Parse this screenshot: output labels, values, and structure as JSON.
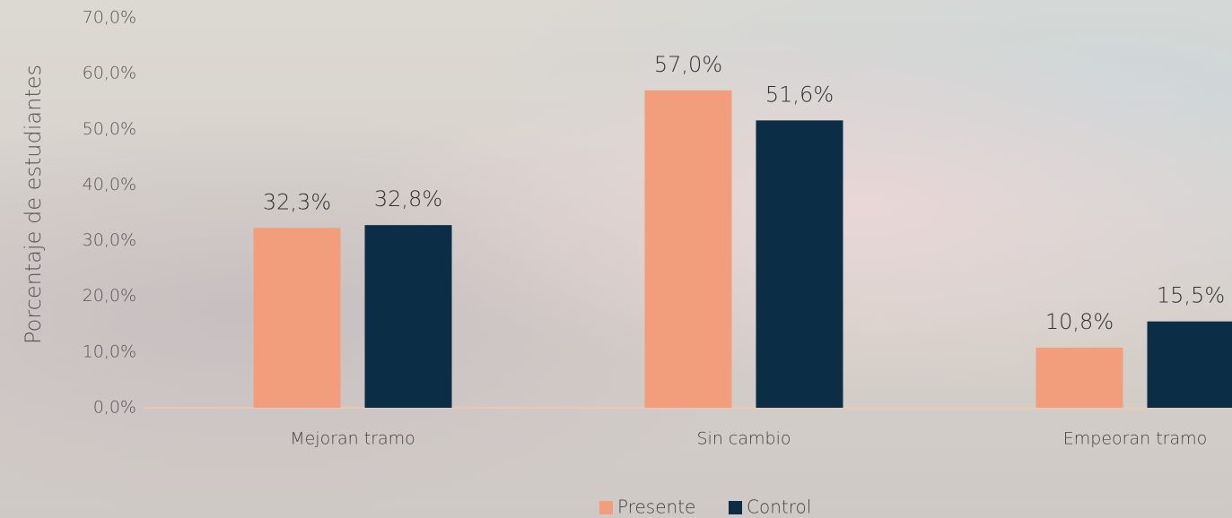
{
  "chart_data": {
    "type": "bar",
    "y_label": "Porcentaje de estudiantes",
    "categories": [
      "Mejoran tramo",
      "Sin cambio",
      "Empeoran tramo"
    ],
    "series": [
      {
        "name": "Presente",
        "color": "#f29e7c",
        "values": [
          32.3,
          57.0,
          10.8
        ],
        "value_labels": [
          "32,3%",
          "57,0%",
          "10,8%"
        ]
      },
      {
        "name": "Control",
        "color": "#0b2d45",
        "values": [
          32.8,
          51.6,
          15.5
        ],
        "value_labels": [
          "32,8%",
          "51,6%",
          "15,5%"
        ]
      }
    ],
    "ylim": [
      0,
      70
    ],
    "yticks": [
      {
        "value": 0,
        "label": "0,0%"
      },
      {
        "value": 10,
        "label": "10,0%"
      },
      {
        "value": 20,
        "label": "20,0%"
      },
      {
        "value": 30,
        "label": "30,0%"
      },
      {
        "value": 40,
        "label": "40,0%"
      },
      {
        "value": 50,
        "label": "50,0%"
      },
      {
        "value": 60,
        "label": "60,0%"
      },
      {
        "value": 70,
        "label": "70,0%"
      }
    ],
    "legend": "bottom"
  }
}
